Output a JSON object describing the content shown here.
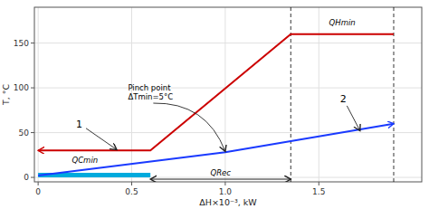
{
  "chart_data": {
    "type": "line",
    "xlabel": "ΔH×10⁻³, kW",
    "ylabel": "T, °C",
    "xlim": [
      -0.02,
      2.05
    ],
    "ylim": [
      -5,
      190
    ],
    "xticks": [
      0,
      0.5,
      {
        "value": 1.0,
        "label": "1.0"
      },
      1.5
    ],
    "yticks": [
      0,
      50,
      100,
      150
    ],
    "grid": true,
    "series": [
      {
        "color": "#cc0000",
        "x": [
          0.0,
          0.6,
          1.35,
          1.9
        ],
        "values": [
          30,
          30,
          160,
          160
        ]
      },
      {
        "color": "#1a3aff",
        "x": [
          0.0,
          1.0,
          1.9
        ],
        "values": [
          2,
          28,
          60
        ]
      }
    ],
    "fill": {
      "x": [
        0.0,
        0.6
      ],
      "values": [
        5,
        5
      ],
      "color": "#00aadd"
    },
    "vlines": [
      1.35,
      1.9
    ],
    "span": {
      "x1": 0.6,
      "x2": 1.35,
      "y": -2,
      "text": "QRec"
    },
    "annotations": [
      {
        "text": "1",
        "x": 0.22,
        "y": 60,
        "arrow_x": 0.42,
        "arrow_y": 31
      },
      {
        "text": "2",
        "x": 1.63,
        "y": 88,
        "arrow_x": 1.72,
        "arrow_y": 52
      },
      {
        "text": "Pinch point\nΔTmin=5°C",
        "x": 0.48,
        "y": 95,
        "arrow_x": 1.0,
        "arrow_y": 29
      },
      {
        "text": "QHmin",
        "x": 1.625,
        "y": 168
      },
      {
        "text": "QCmin",
        "x": 0.25,
        "y": 14
      }
    ]
  }
}
